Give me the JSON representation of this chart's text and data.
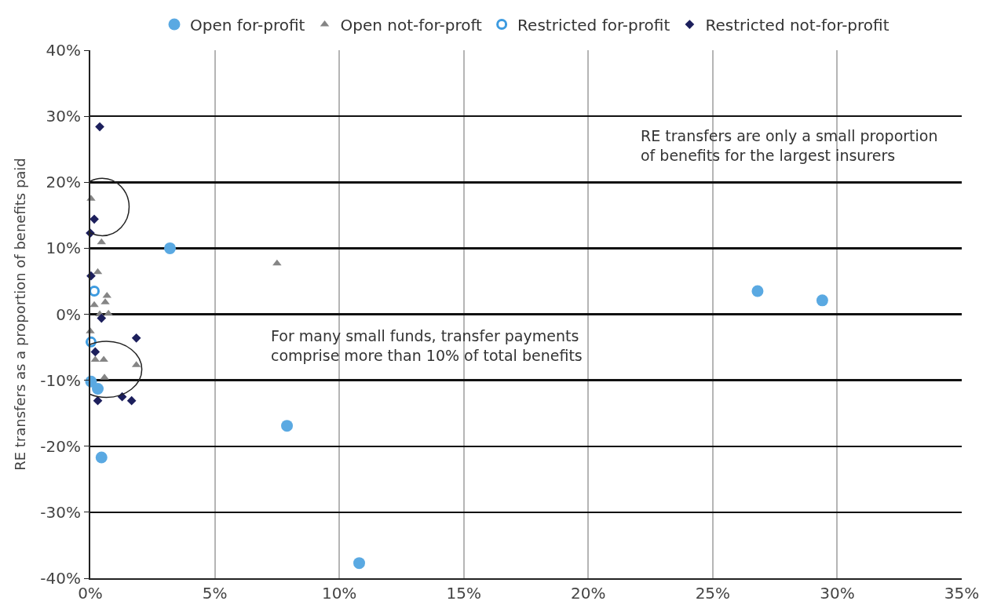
{
  "chart_data": {
    "type": "scatter",
    "ylabel": "RE transfers as a proportion of benefits paid",
    "annotations": [
      "RE transfers are only a small proportion\nof benefits for the largest insurers",
      "For many small funds, transfer payments\ncomprise more than 10% of total benefits"
    ],
    "xlim": [
      0,
      35
    ],
    "xticks": [
      {
        "value": 0,
        "label": "0%"
      },
      {
        "value": 5,
        "label": "5%"
      },
      {
        "value": 10,
        "label": "10%"
      },
      {
        "value": 15,
        "label": "15%"
      },
      {
        "value": 20,
        "label": "20%"
      },
      {
        "value": 25,
        "label": "25%"
      },
      {
        "value": 30,
        "label": "30%"
      },
      {
        "value": 35,
        "label": "35%"
      }
    ],
    "ylim": [
      -40,
      40
    ],
    "yticks": [
      {
        "value": -40,
        "label": "-40%"
      },
      {
        "value": -30,
        "label": "-30%"
      },
      {
        "value": -20,
        "label": "-20%"
      },
      {
        "value": -10,
        "label": "-10%"
      },
      {
        "value": 0,
        "label": "0%"
      },
      {
        "value": 10,
        "label": "10%"
      },
      {
        "value": 20,
        "label": "20%"
      },
      {
        "value": 30,
        "label": "30%"
      },
      {
        "value": 40,
        "label": "40%"
      }
    ],
    "grid": true,
    "legend": "top",
    "series": [
      {
        "name": "Open for-profit",
        "color": "#5aa9e2",
        "marker": "circle",
        "x": [
          3.2,
          7.9,
          10.8,
          26.8,
          29.4,
          0.03,
          0.3,
          0.45
        ],
        "values": [
          10,
          -16.9,
          -37.7,
          3.5,
          2.1,
          -10.2,
          -11.3,
          -21.7
        ]
      },
      {
        "name": "Open not-for-proft",
        "color": "#858585",
        "marker": "triangle",
        "x": [
          0.03,
          0.45,
          0.3,
          7.5,
          0.67,
          0.6,
          0.16,
          0.38,
          0.73,
          0,
          0.2,
          0.54,
          1.85,
          0.57
        ],
        "values": [
          17.5,
          10.9,
          6.4,
          7.7,
          2.8,
          1.8,
          1.4,
          0,
          0.1,
          -2.6,
          -6.9,
          -6.9,
          -7.7,
          -9.6
        ]
      },
      {
        "name": "Restricted for-profit",
        "color": "#3d9be0",
        "marker": "circle-open",
        "x": [
          0.16,
          0.03
        ],
        "values": [
          3.5,
          -4.2
        ]
      },
      {
        "name": "Restricted not-for-profit",
        "color": "#1c1f5c",
        "marker": "diamond",
        "x": [
          0.38,
          0.16,
          0,
          0.03,
          0.45,
          1.85,
          0.2,
          0.3,
          1.28,
          1.66
        ],
        "values": [
          28.4,
          14.4,
          12.3,
          5.8,
          -0.6,
          -3.6,
          -5.7,
          -13.1,
          -12.5,
          -13.1
        ]
      }
    ]
  }
}
